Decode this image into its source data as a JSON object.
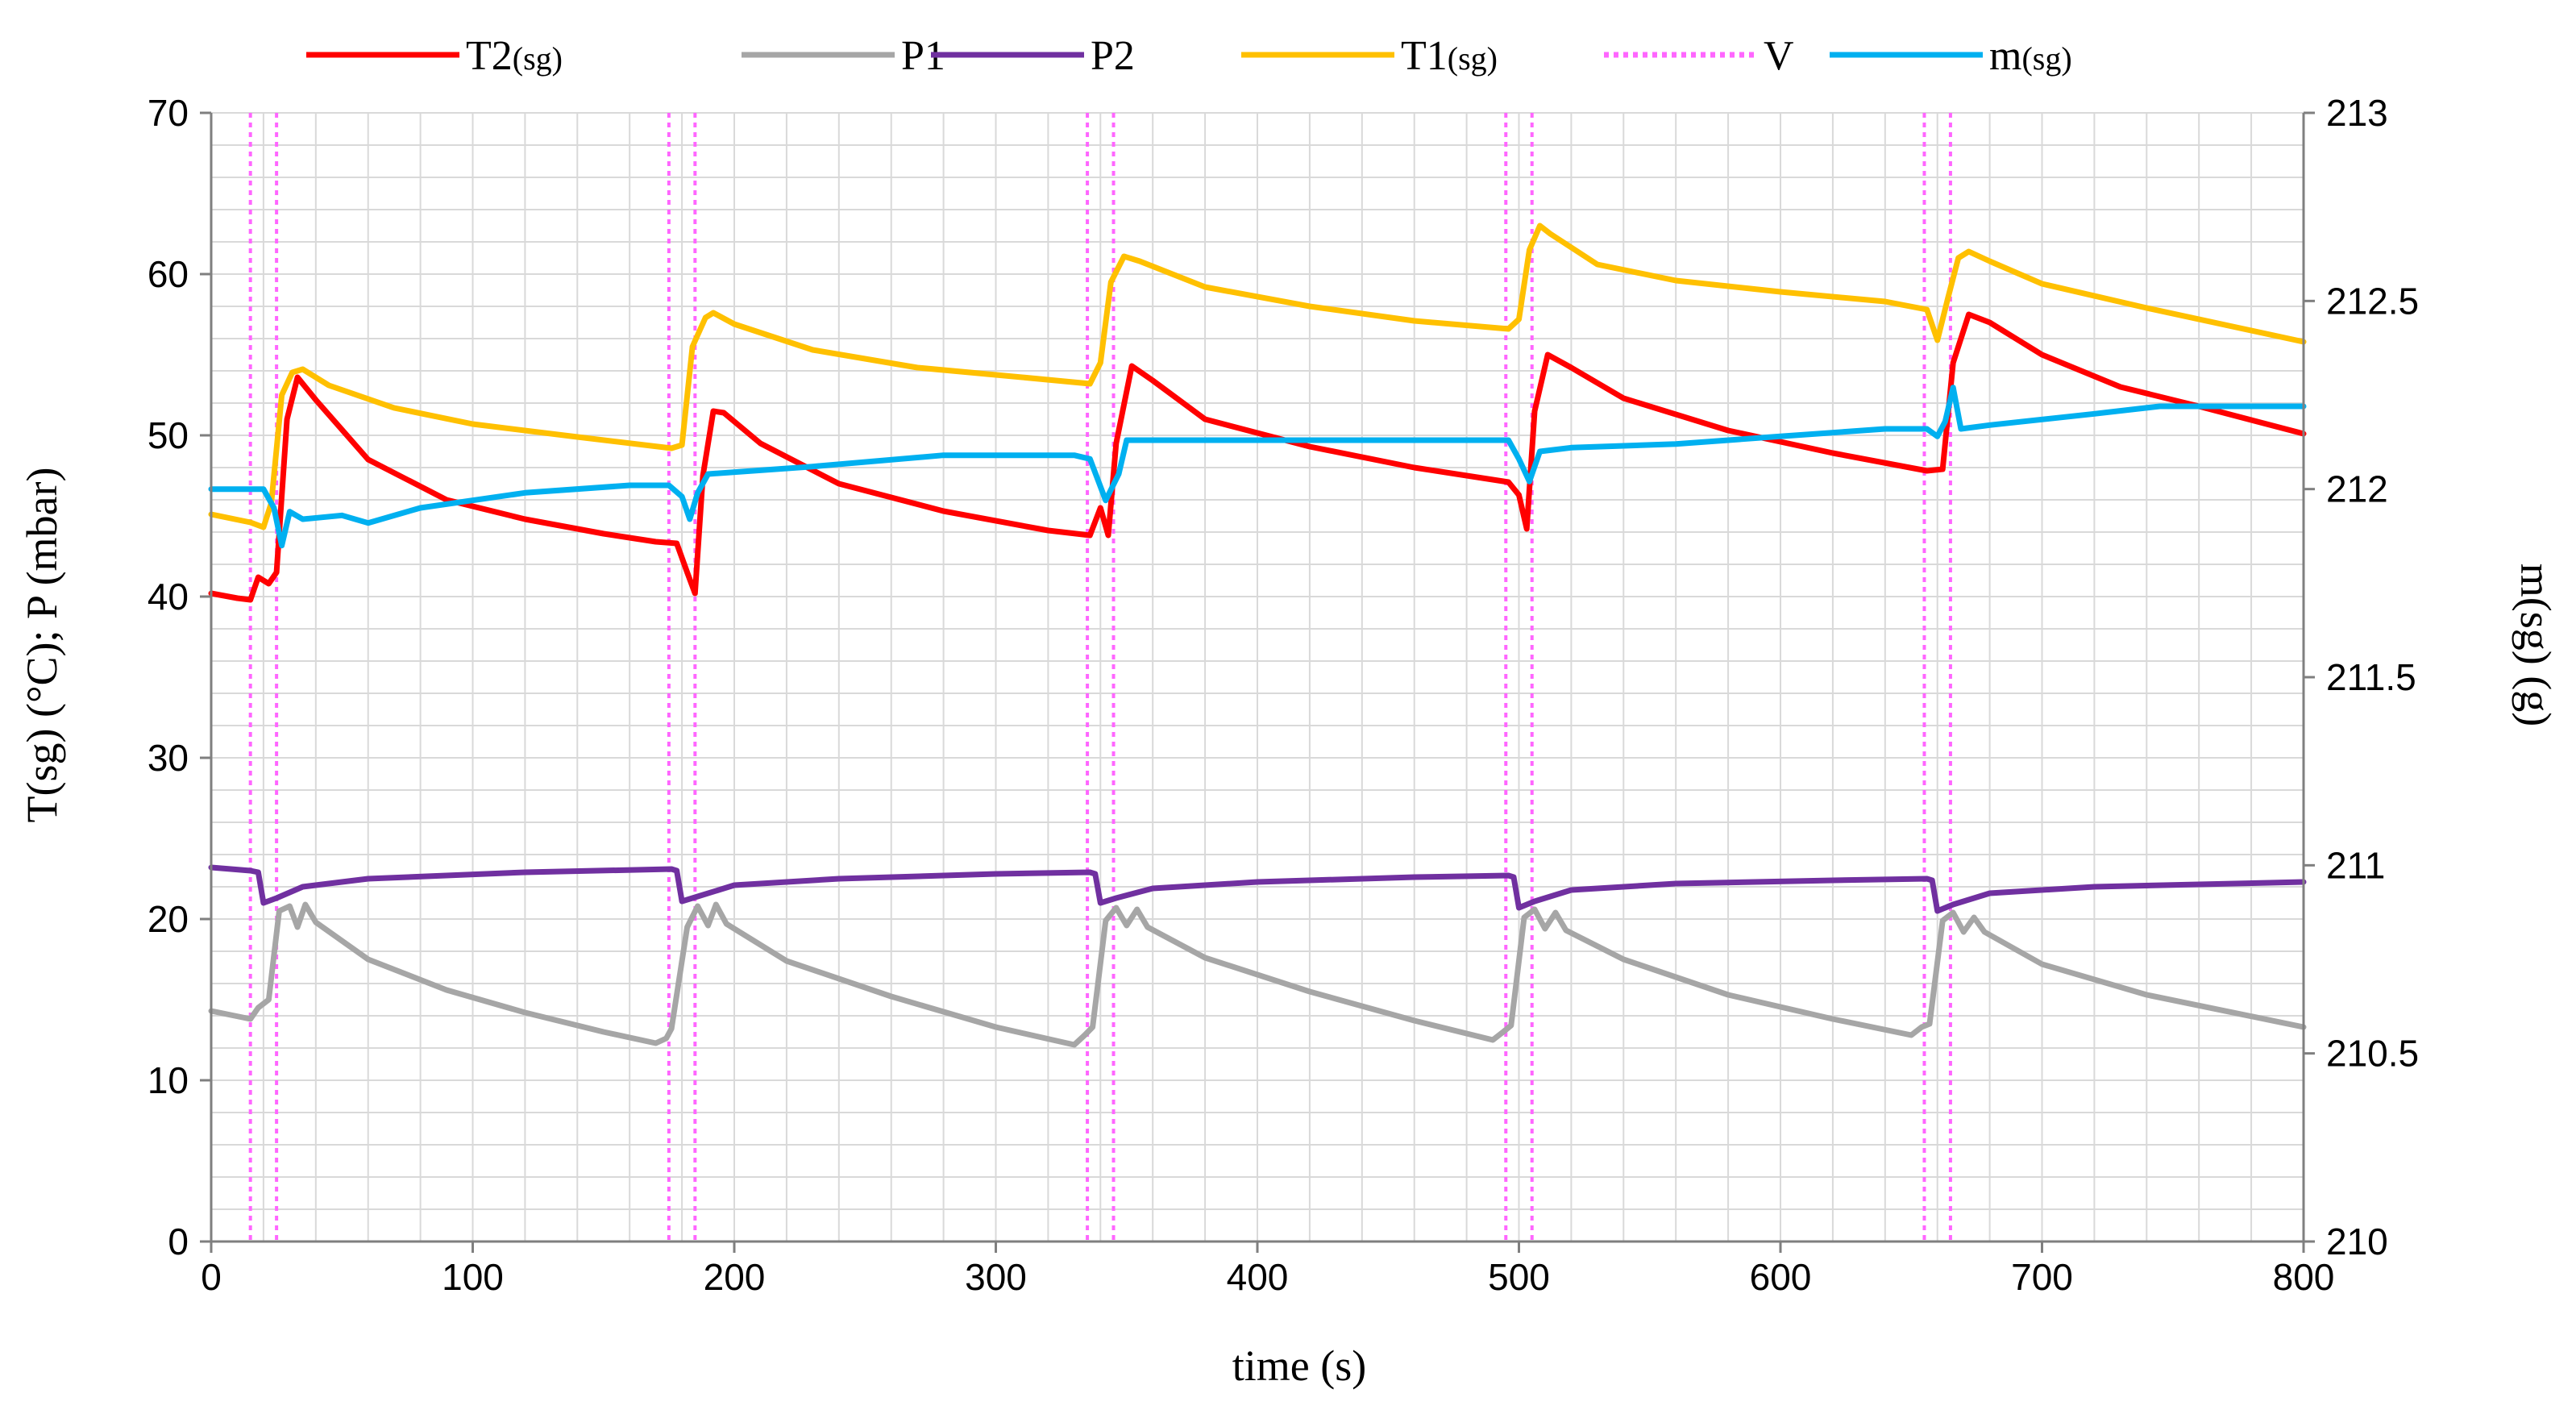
{
  "chart_data": {
    "type": "line",
    "title": "",
    "xlabel": "time (s)",
    "ylabel": "T(sg) (°C); P (mbar)",
    "y2label": "m(sg) (g)",
    "xlim": [
      0,
      800
    ],
    "ylim": [
      0,
      70
    ],
    "y2lim": [
      210,
      213
    ],
    "grid": true,
    "legend_position": "top",
    "x_ticks": [
      "0",
      "100",
      "200",
      "300",
      "400",
      "500",
      "600",
      "700",
      "800"
    ],
    "y_ticks": [
      "0",
      "10",
      "20",
      "30",
      "40",
      "50",
      "60",
      "70"
    ],
    "y2_ticks": [
      "210",
      "210.5",
      "211",
      "211.5",
      "212",
      "212.5",
      "213"
    ],
    "valve_events_s": [
      15,
      25,
      175,
      185,
      335,
      345,
      495,
      505,
      655,
      665
    ],
    "series": [
      {
        "name": "T2(sg)",
        "legend_main": "T2",
        "legend_sub": "(sg)",
        "legend_style": "solid",
        "color": "#ff0000",
        "axis": "left",
        "points": [
          [
            0,
            40.2
          ],
          [
            10,
            39.9
          ],
          [
            15,
            39.8
          ],
          [
            18,
            41.2
          ],
          [
            22,
            40.8
          ],
          [
            25,
            41.5
          ],
          [
            29,
            51.0
          ],
          [
            33,
            53.6
          ],
          [
            40,
            52.2
          ],
          [
            60,
            48.5
          ],
          [
            90,
            46.0
          ],
          [
            120,
            44.8
          ],
          [
            150,
            43.9
          ],
          [
            170,
            43.4
          ],
          [
            178,
            43.3
          ],
          [
            182,
            41.5
          ],
          [
            185,
            40.2
          ],
          [
            188,
            47.5
          ],
          [
            192,
            51.5
          ],
          [
            196,
            51.4
          ],
          [
            210,
            49.5
          ],
          [
            240,
            47.0
          ],
          [
            280,
            45.3
          ],
          [
            320,
            44.1
          ],
          [
            336,
            43.8
          ],
          [
            340,
            45.5
          ],
          [
            343,
            43.8
          ],
          [
            346,
            49.5
          ],
          [
            352,
            54.3
          ],
          [
            360,
            53.4
          ],
          [
            380,
            51.0
          ],
          [
            420,
            49.3
          ],
          [
            460,
            48.0
          ],
          [
            496,
            47.1
          ],
          [
            500,
            46.3
          ],
          [
            503,
            44.2
          ],
          [
            506,
            51.5
          ],
          [
            511,
            55.0
          ],
          [
            520,
            54.2
          ],
          [
            540,
            52.3
          ],
          [
            580,
            50.3
          ],
          [
            620,
            48.9
          ],
          [
            656,
            47.8
          ],
          [
            662,
            47.9
          ],
          [
            666,
            54.5
          ],
          [
            672,
            57.5
          ],
          [
            680,
            57.0
          ],
          [
            700,
            55.0
          ],
          [
            730,
            53.0
          ],
          [
            760,
            51.8
          ],
          [
            800,
            50.1
          ]
        ]
      },
      {
        "name": "P1",
        "legend_main": "P1",
        "legend_sub": "",
        "legend_style": "solid",
        "color": "#a6a6a6",
        "axis": "left",
        "points": [
          [
            0,
            14.3
          ],
          [
            15,
            13.8
          ],
          [
            18,
            14.5
          ],
          [
            22,
            15.0
          ],
          [
            26,
            20.5
          ],
          [
            30,
            20.8
          ],
          [
            33,
            19.5
          ],
          [
            36,
            20.9
          ],
          [
            40,
            19.8
          ],
          [
            60,
            17.5
          ],
          [
            90,
            15.6
          ],
          [
            120,
            14.2
          ],
          [
            150,
            13.0
          ],
          [
            170,
            12.3
          ],
          [
            174,
            12.6
          ],
          [
            176,
            13.2
          ],
          [
            182,
            19.5
          ],
          [
            186,
            20.8
          ],
          [
            190,
            19.6
          ],
          [
            193,
            20.9
          ],
          [
            197,
            19.7
          ],
          [
            220,
            17.4
          ],
          [
            260,
            15.2
          ],
          [
            300,
            13.3
          ],
          [
            330,
            12.2
          ],
          [
            334,
            12.8
          ],
          [
            337,
            13.3
          ],
          [
            342,
            19.9
          ],
          [
            346,
            20.7
          ],
          [
            350,
            19.6
          ],
          [
            354,
            20.6
          ],
          [
            358,
            19.5
          ],
          [
            380,
            17.6
          ],
          [
            420,
            15.5
          ],
          [
            460,
            13.7
          ],
          [
            490,
            12.5
          ],
          [
            494,
            13.0
          ],
          [
            497,
            13.4
          ],
          [
            502,
            20.1
          ],
          [
            506,
            20.6
          ],
          [
            510,
            19.4
          ],
          [
            514,
            20.4
          ],
          [
            518,
            19.3
          ],
          [
            540,
            17.5
          ],
          [
            580,
            15.3
          ],
          [
            620,
            13.8
          ],
          [
            650,
            12.8
          ],
          [
            654,
            13.3
          ],
          [
            657,
            13.5
          ],
          [
            662,
            19.9
          ],
          [
            666,
            20.4
          ],
          [
            670,
            19.2
          ],
          [
            674,
            20.1
          ],
          [
            678,
            19.2
          ],
          [
            700,
            17.2
          ],
          [
            740,
            15.3
          ],
          [
            800,
            13.3
          ]
        ]
      },
      {
        "name": "P2",
        "legend_main": "P2",
        "legend_sub": "",
        "legend_style": "solid",
        "color": "#7030a0",
        "axis": "left",
        "points": [
          [
            0,
            23.2
          ],
          [
            15,
            23.0
          ],
          [
            18,
            22.9
          ],
          [
            20,
            21.0
          ],
          [
            25,
            21.3
          ],
          [
            35,
            22.0
          ],
          [
            60,
            22.5
          ],
          [
            120,
            22.9
          ],
          [
            176,
            23.1
          ],
          [
            178,
            23.0
          ],
          [
            180,
            21.1
          ],
          [
            186,
            21.4
          ],
          [
            200,
            22.1
          ],
          [
            240,
            22.5
          ],
          [
            300,
            22.8
          ],
          [
            336,
            22.9
          ],
          [
            338,
            22.8
          ],
          [
            340,
            21.0
          ],
          [
            346,
            21.3
          ],
          [
            360,
            21.9
          ],
          [
            400,
            22.3
          ],
          [
            460,
            22.6
          ],
          [
            496,
            22.7
          ],
          [
            498,
            22.6
          ],
          [
            500,
            20.7
          ],
          [
            506,
            21.1
          ],
          [
            520,
            21.8
          ],
          [
            560,
            22.2
          ],
          [
            620,
            22.4
          ],
          [
            656,
            22.5
          ],
          [
            658,
            22.4
          ],
          [
            660,
            20.5
          ],
          [
            666,
            20.9
          ],
          [
            680,
            21.6
          ],
          [
            720,
            22.0
          ],
          [
            800,
            22.3
          ]
        ]
      },
      {
        "name": "T1(sg)",
        "legend_main": "T1",
        "legend_sub": "(sg)",
        "legend_style": "solid",
        "color": "#ffc000",
        "axis": "left",
        "points": [
          [
            0,
            45.1
          ],
          [
            15,
            44.6
          ],
          [
            20,
            44.3
          ],
          [
            23,
            45.8
          ],
          [
            27,
            52.5
          ],
          [
            31,
            53.9
          ],
          [
            35,
            54.1
          ],
          [
            45,
            53.1
          ],
          [
            70,
            51.7
          ],
          [
            100,
            50.7
          ],
          [
            140,
            49.9
          ],
          [
            176,
            49.2
          ],
          [
            180,
            49.4
          ],
          [
            184,
            55.5
          ],
          [
            189,
            57.3
          ],
          [
            192,
            57.6
          ],
          [
            200,
            56.9
          ],
          [
            230,
            55.3
          ],
          [
            270,
            54.2
          ],
          [
            310,
            53.6
          ],
          [
            336,
            53.2
          ],
          [
            340,
            54.5
          ],
          [
            344,
            59.5
          ],
          [
            349,
            61.1
          ],
          [
            355,
            60.8
          ],
          [
            380,
            59.2
          ],
          [
            420,
            58.0
          ],
          [
            460,
            57.1
          ],
          [
            496,
            56.6
          ],
          [
            500,
            57.2
          ],
          [
            504,
            61.5
          ],
          [
            508,
            63.0
          ],
          [
            512,
            62.5
          ],
          [
            530,
            60.6
          ],
          [
            560,
            59.6
          ],
          [
            600,
            58.9
          ],
          [
            640,
            58.3
          ],
          [
            656,
            57.8
          ],
          [
            660,
            55.9
          ],
          [
            664,
            58.5
          ],
          [
            668,
            61.0
          ],
          [
            672,
            61.4
          ],
          [
            680,
            60.8
          ],
          [
            700,
            59.4
          ],
          [
            740,
            57.9
          ],
          [
            800,
            55.8
          ]
        ]
      },
      {
        "name": "m(sg)",
        "legend_main": "m",
        "legend_sub": "(sg)",
        "legend_style": "solid",
        "color": "#00b0f0",
        "axis": "right",
        "points": [
          [
            0,
            212.0
          ],
          [
            15,
            212.0
          ],
          [
            20,
            212.0
          ],
          [
            24,
            211.95
          ],
          [
            27,
            211.85
          ],
          [
            30,
            211.94
          ],
          [
            35,
            211.92
          ],
          [
            50,
            211.93
          ],
          [
            60,
            211.91
          ],
          [
            80,
            211.95
          ],
          [
            120,
            211.99
          ],
          [
            160,
            212.01
          ],
          [
            175,
            212.01
          ],
          [
            180,
            211.98
          ],
          [
            183,
            211.92
          ],
          [
            186,
            211.99
          ],
          [
            190,
            212.04
          ],
          [
            230,
            212.06
          ],
          [
            280,
            212.09
          ],
          [
            330,
            212.09
          ],
          [
            336,
            212.08
          ],
          [
            342,
            211.97
          ],
          [
            347,
            212.04
          ],
          [
            350,
            212.13
          ],
          [
            400,
            212.13
          ],
          [
            450,
            212.13
          ],
          [
            496,
            212.13
          ],
          [
            500,
            212.08
          ],
          [
            504,
            212.02
          ],
          [
            508,
            212.1
          ],
          [
            520,
            212.11
          ],
          [
            560,
            212.12
          ],
          [
            600,
            212.14
          ],
          [
            640,
            212.16
          ],
          [
            656,
            212.16
          ],
          [
            660,
            212.14
          ],
          [
            663,
            212.18
          ],
          [
            666,
            212.27
          ],
          [
            669,
            212.16
          ],
          [
            680,
            212.17
          ],
          [
            720,
            212.2
          ],
          [
            745,
            212.22
          ],
          [
            760,
            212.22
          ],
          [
            800,
            212.22
          ]
        ]
      },
      {
        "name": "V",
        "legend_main": "V",
        "legend_sub": "",
        "legend_style": "dotted",
        "color": "#ff66ff",
        "axis": "left",
        "points": []
      }
    ],
    "legend_order": [
      "T2(sg)",
      "P1",
      "P2",
      "T1(sg)",
      "V",
      "m(sg)"
    ]
  }
}
